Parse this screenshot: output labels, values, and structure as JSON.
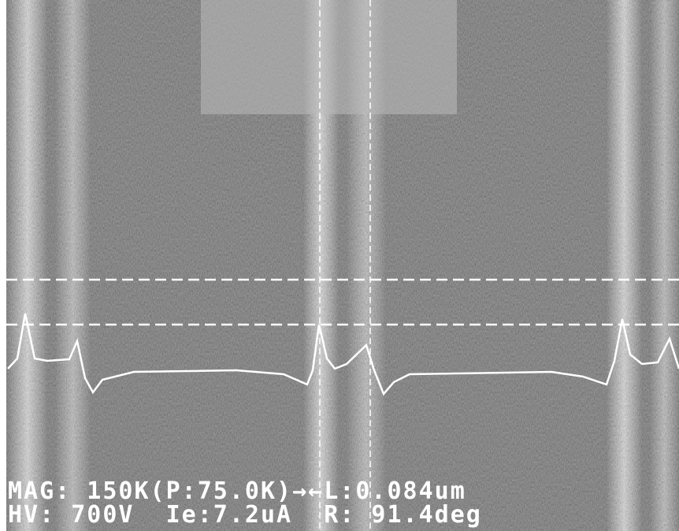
{
  "overlay": {
    "line1": "MAG: 150K(P:75.0K)→←L:0.084um",
    "line2": "HV: 700V  Ie:7.2uA  R: 91.4deg"
  }
}
